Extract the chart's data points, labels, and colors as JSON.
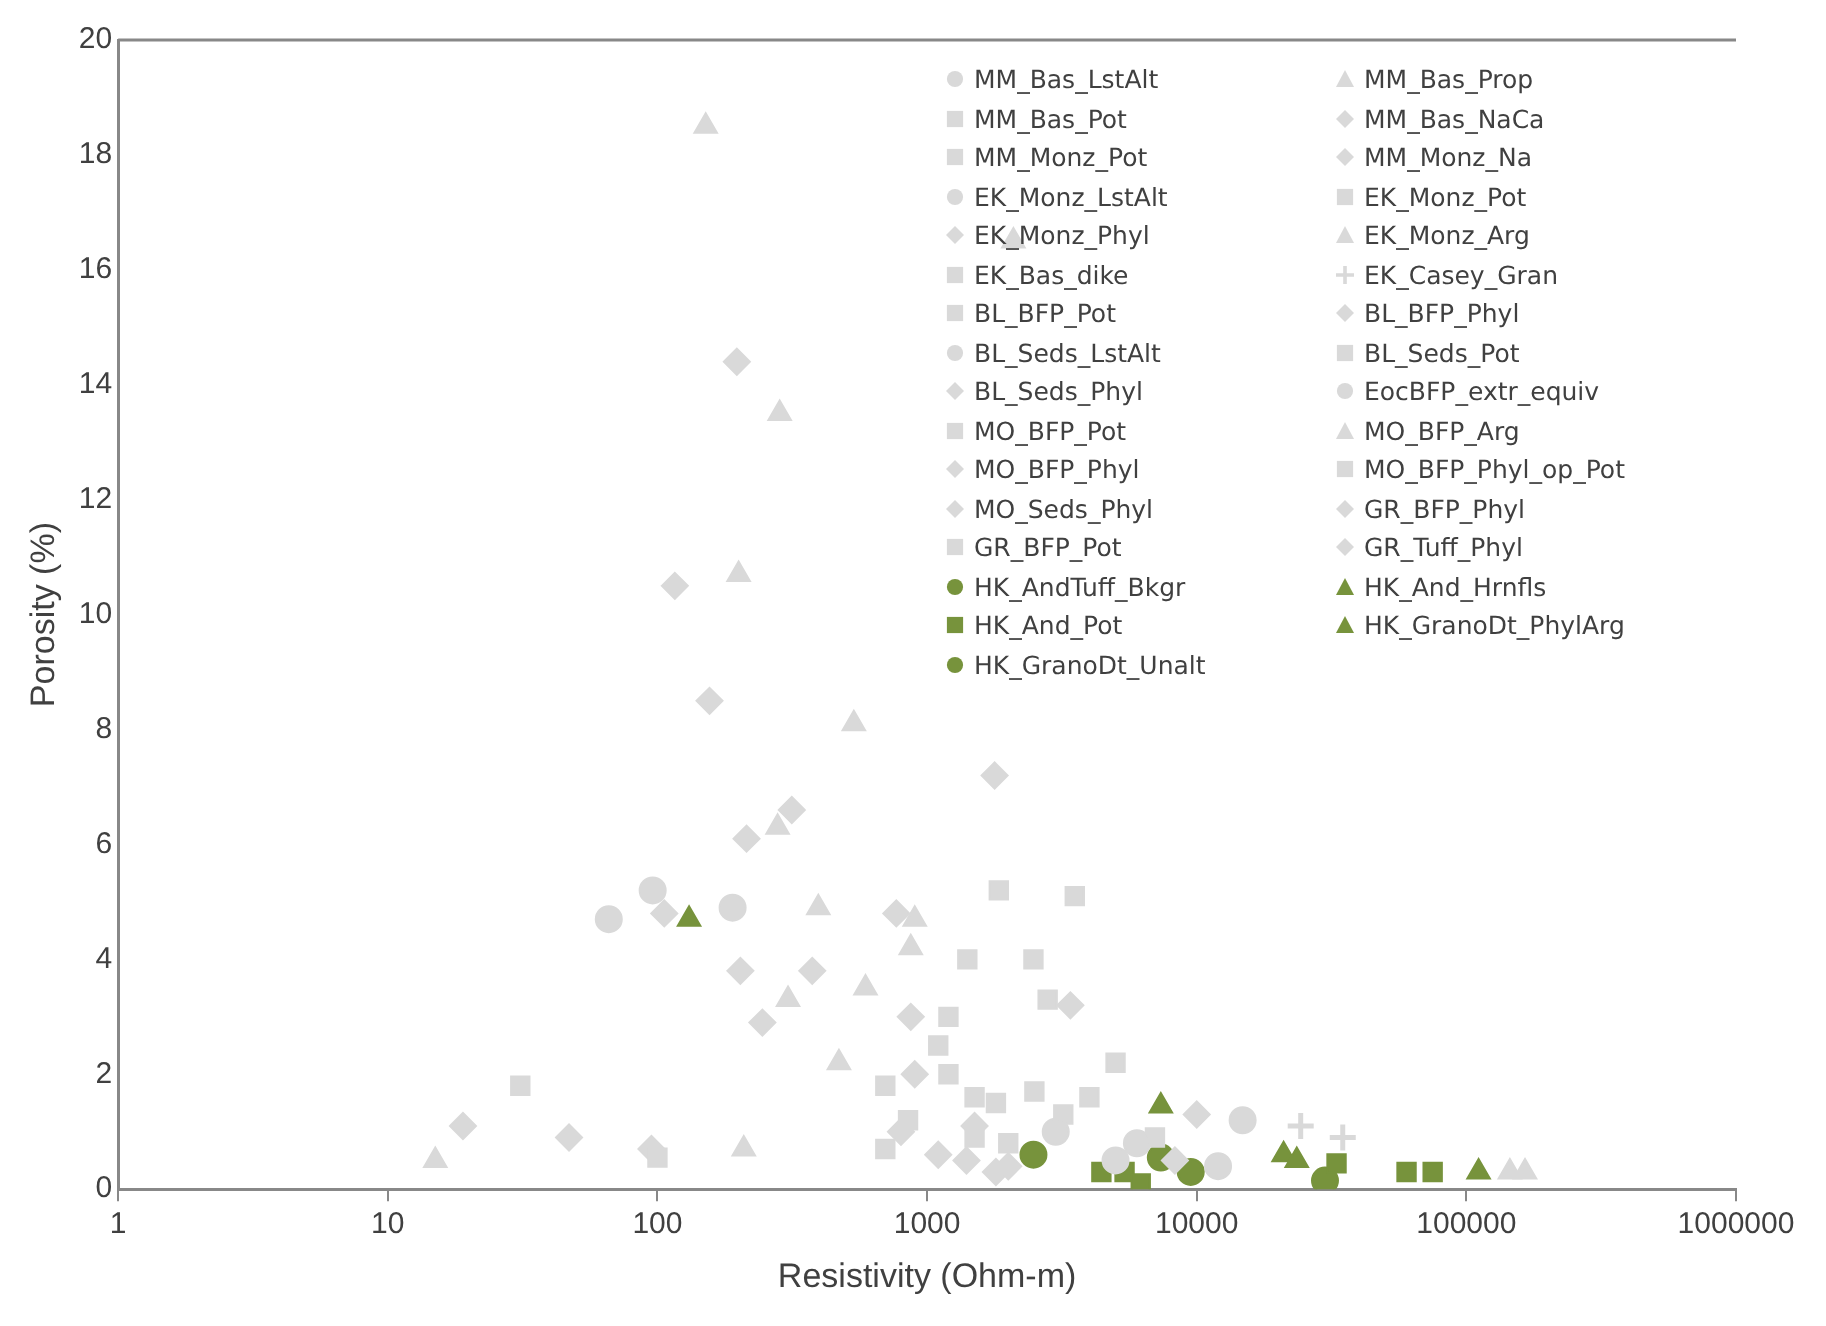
{
  "chart_data": {
    "type": "scatter",
    "xlabel": "Resistivity (Ohm-m)",
    "ylabel": "Porosity (%)",
    "log": "x",
    "xlim": [
      1,
      1000000
    ],
    "xticks": [
      1,
      10,
      100,
      1000,
      10000,
      100000,
      1000000
    ],
    "ylim": [
      0,
      20
    ],
    "yticks": [
      0,
      2,
      4,
      6,
      8,
      10,
      12,
      14,
      16,
      18,
      20
    ],
    "grid": false,
    "legend": "top right",
    "series": [
      {
        "name": "MM_Bas_LstAlt",
        "color": "#d9d9d9",
        "marker": "circle",
        "x": [
          5000,
          12000
        ],
        "values": [
          0.5,
          0.4
        ]
      },
      {
        "name": "MM_Bas_Prop",
        "color": "#d9d9d9",
        "marker": "triangle",
        "x": [
          15,
          209,
          870,
          145000,
          165000
        ],
        "values": [
          0.5,
          0.7,
          4.2,
          0.3,
          0.3
        ]
      },
      {
        "name": "MM_Bas_Pot",
        "color": "#d9d9d9",
        "marker": "square",
        "x": [
          31,
          100,
          700
        ],
        "values": [
          1.8,
          0.55,
          1.8
        ]
      },
      {
        "name": "MM_Bas_NaCa",
        "color": "#d9d9d9",
        "marker": "diamond",
        "x": [
          19,
          47,
          870
        ],
        "values": [
          1.1,
          0.9,
          3.0
        ]
      },
      {
        "name": "MM_Monz_Pot",
        "color": "#d9d9d9",
        "marker": "square",
        "x": [
          1845,
          3530
        ],
        "values": [
          5.2,
          5.1
        ]
      },
      {
        "name": "MM_Monz_Na",
        "color": "#d9d9d9",
        "marker": "diamond",
        "x": [
          197,
          116,
          156,
          1780
        ],
        "values": [
          14.4,
          10.5,
          8.5,
          7.2
        ]
      },
      {
        "name": "EK_Monz_LstAlt",
        "color": "#d9d9d9",
        "marker": "circle",
        "x": [
          66,
          96,
          14800
        ],
        "values": [
          4.7,
          5.2,
          1.2
        ]
      },
      {
        "name": "EK_Monz_Pot",
        "color": "#d9d9d9",
        "marker": "square",
        "x": [
          2480,
          2800,
          1200
        ],
        "values": [
          4.0,
          3.3,
          3.0
        ]
      },
      {
        "name": "EK_Monz_Phyl",
        "color": "#d9d9d9",
        "marker": "diamond",
        "x": [
          315,
          214,
          106,
          769
        ],
        "values": [
          6.6,
          6.1,
          4.8,
          4.8
        ]
      },
      {
        "name": "EK_Monz_Arg",
        "color": "#d9d9d9",
        "marker": "triangle",
        "x": [
          151,
          2090,
          284,
          200
        ],
        "values": [
          18.5,
          16.5,
          13.5,
          10.7
        ]
      },
      {
        "name": "EK_Bas_dike",
        "color": "#d9d9d9",
        "marker": "square",
        "x": [
          1410,
          1500
        ],
        "values": [
          4.0,
          0.9
        ]
      },
      {
        "name": "EK_Casey_Gran",
        "color": "#d9d9d9",
        "marker": "cross",
        "x": [
          24300,
          34800
        ],
        "values": [
          1.1,
          0.9
        ]
      },
      {
        "name": "BL_BFP_Pot",
        "color": "#d9d9d9",
        "marker": "square",
        "x": [
          700,
          1100,
          1500
        ],
        "values": [
          0.7,
          2.5,
          1.6
        ]
      },
      {
        "name": "BL_BFP_Phyl",
        "color": "#d9d9d9",
        "marker": "diamond",
        "x": [
          203,
          375,
          245,
          95
        ],
        "values": [
          3.8,
          3.8,
          2.9,
          0.7
        ]
      },
      {
        "name": "BL_Seds_LstAlt",
        "color": "#d9d9d9",
        "marker": "circle",
        "x": [
          190
        ],
        "values": [
          4.9
        ]
      },
      {
        "name": "BL_Seds_Pot",
        "color": "#d9d9d9",
        "marker": "square",
        "x": [
          850,
          2000
        ],
        "values": [
          1.2,
          0.8
        ]
      },
      {
        "name": "BL_Seds_Phyl",
        "color": "#d9d9d9",
        "marker": "diamond",
        "x": [
          1100,
          1400
        ],
        "values": [
          0.6,
          0.5
        ]
      },
      {
        "name": "EocBFP_extr_equiv",
        "color": "#d9d9d9",
        "marker": "circle",
        "x": [
          3000,
          6000
        ],
        "values": [
          1.0,
          0.8
        ]
      },
      {
        "name": "MO_BFP_Pot",
        "color": "#d9d9d9",
        "marker": "square",
        "x": [
          5000,
          4000,
          3200
        ],
        "values": [
          2.2,
          1.6,
          1.3
        ]
      },
      {
        "name": "MO_BFP_Arg",
        "color": "#d9d9d9",
        "marker": "triangle",
        "x": [
          535,
          279,
          395,
          900,
          591,
          305,
          471
        ],
        "values": [
          8.1,
          6.3,
          4.9,
          4.7,
          3.5,
          3.3,
          2.2
        ]
      },
      {
        "name": "MO_BFP_Phyl",
        "color": "#d9d9d9",
        "marker": "diamond",
        "x": [
          3400,
          10000
        ],
        "values": [
          3.2,
          1.3
        ]
      },
      {
        "name": "MO_BFP_Phyl_op_Pot",
        "color": "#d9d9d9",
        "marker": "square",
        "x": [
          1200,
          1800
        ],
        "values": [
          2.0,
          1.5
        ]
      },
      {
        "name": "MO_Seds_Phyl",
        "color": "#d9d9d9",
        "marker": "diamond",
        "x": [
          8300,
          2000
        ],
        "values": [
          0.5,
          0.4
        ]
      },
      {
        "name": "GR_BFP_Phyl",
        "color": "#d9d9d9",
        "marker": "diamond",
        "x": [
          1500,
          900
        ],
        "values": [
          1.1,
          2.0
        ]
      },
      {
        "name": "GR_BFP_Pot",
        "color": "#d9d9d9",
        "marker": "square",
        "x": [
          2500,
          7000
        ],
        "values": [
          1.7,
          0.9
        ]
      },
      {
        "name": "GR_Tuff_Phyl",
        "color": "#d9d9d9",
        "marker": "diamond",
        "x": [
          800,
          1800
        ],
        "values": [
          1.0,
          0.3
        ]
      },
      {
        "name": "HK_AndTuff_Bkgr",
        "color": "#77933c",
        "marker": "circle",
        "x": [
          2480,
          7360
        ],
        "values": [
          0.6,
          0.55
        ]
      },
      {
        "name": "HK_And_Hrnfls",
        "color": "#77933c",
        "marker": "triangle",
        "x": [
          7360,
          23500,
          111000
        ],
        "values": [
          1.45,
          0.5,
          0.3
        ]
      },
      {
        "name": "HK_And_Pot",
        "color": "#77933c",
        "marker": "square",
        "x": [
          4430,
          5400,
          6200,
          33000,
          60000,
          75000
        ],
        "values": [
          0.3,
          0.3,
          0.1,
          0.45,
          0.3,
          0.3
        ]
      },
      {
        "name": "HK_GranoDt_PhylArg",
        "color": "#77933c",
        "marker": "triangle",
        "x": [
          131,
          21000
        ],
        "values": [
          4.7,
          0.6
        ]
      },
      {
        "name": "HK_GranoDt_Unalt",
        "color": "#77933c",
        "marker": "circle",
        "x": [
          9500,
          29900
        ],
        "values": [
          0.3,
          0.15
        ]
      }
    ]
  }
}
